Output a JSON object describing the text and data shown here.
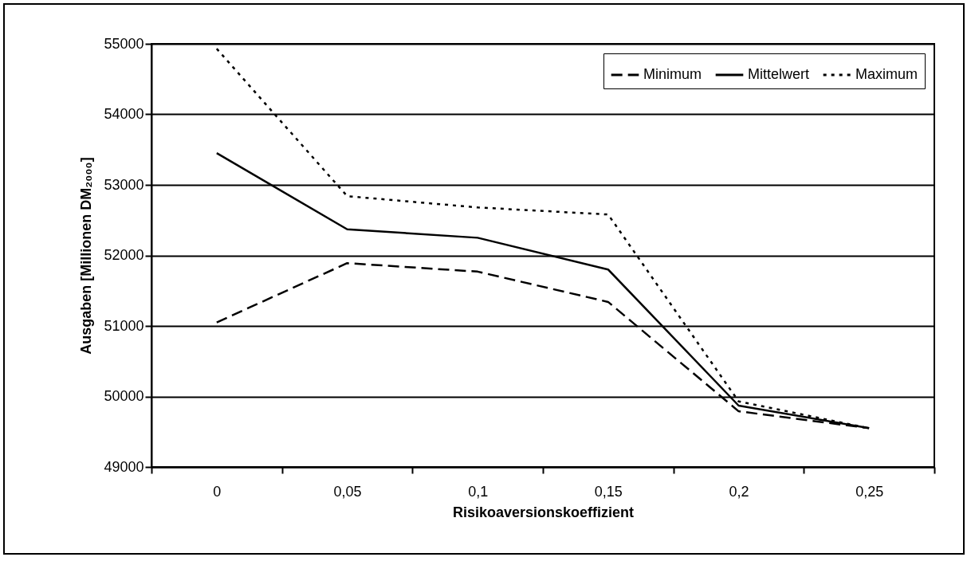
{
  "chart_data": {
    "type": "line",
    "xlabel": "Risikoaversionskoeffizient",
    "ylabel": "Ausgaben [Millionen DM₂₀₀₀]",
    "categories": [
      "0",
      "0,05",
      "0,1",
      "0,15",
      "0,2",
      "0,25"
    ],
    "series": [
      {
        "name": "Minimum",
        "color": "#000000",
        "line_style": "dashed",
        "values": [
          51050,
          51890,
          51770,
          51340,
          49790,
          49550
        ]
      },
      {
        "name": "Mittelwert",
        "color": "#000000",
        "line_style": "solid",
        "values": [
          53450,
          52370,
          52250,
          51800,
          49870,
          49550
        ]
      },
      {
        "name": "Maximum",
        "color": "#000000",
        "line_style": "dotted",
        "values": [
          54930,
          52840,
          52680,
          52580,
          49930,
          49550
        ]
      }
    ],
    "ylim": [
      49000,
      55000
    ],
    "yticks": [
      49000,
      50000,
      51000,
      52000,
      53000,
      54000,
      55000
    ],
    "grid": "y",
    "legend": "top right",
    "marker": "none"
  }
}
